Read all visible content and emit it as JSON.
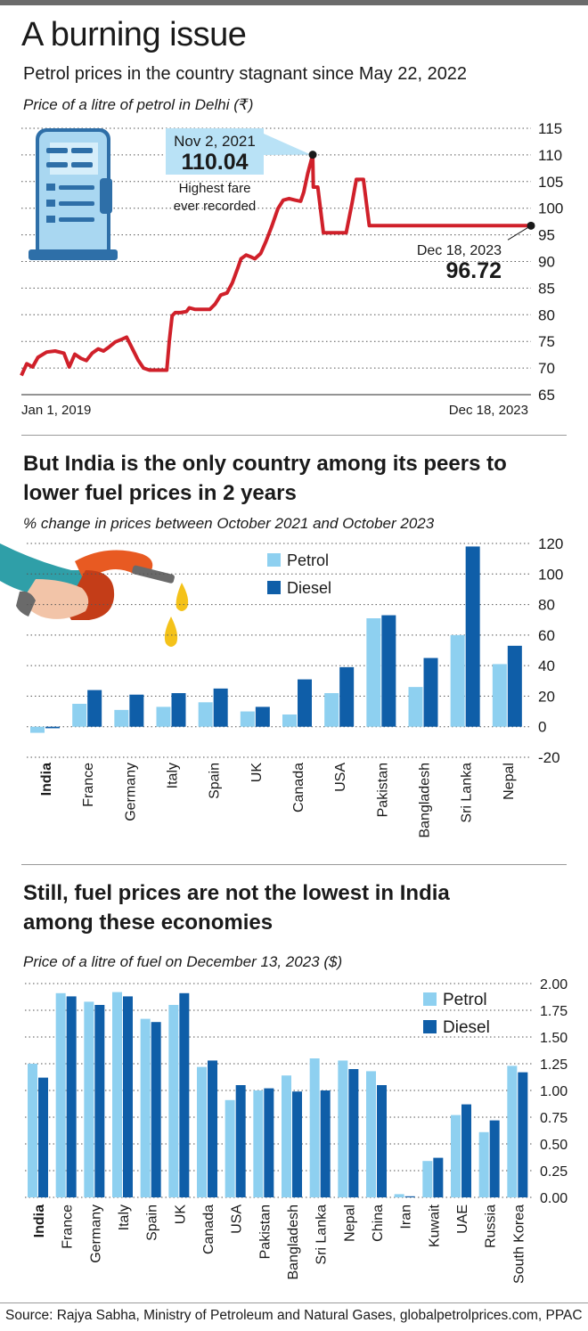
{
  "header": {
    "title": "A burning issue",
    "subtitle": "Petrol prices in the country stagnant since May 22, 2022"
  },
  "chart1": {
    "note": "Price of a litre of petrol in Delhi (₹)",
    "x_start_label": "Jan 1, 2019",
    "x_end_label": "Dec 18, 2023",
    "peak_date": "Nov 2, 2021",
    "peak_value": "110.04",
    "peak_caption_1": "Highest fare",
    "peak_caption_2": "ever recorded",
    "end_date": "Dec 18, 2023",
    "end_value": "96.72"
  },
  "chart2": {
    "title_line1": "But India is the only country among its peers to",
    "title_line2": "lower fuel prices in 2 years",
    "note": "% change in prices between October 2021 and October 2023"
  },
  "chart3": {
    "title_line1": "Still, fuel prices are not the lowest in India",
    "title_line2": "among these economies",
    "note": "Price of a litre of fuel on December 13, 2023 ($)"
  },
  "source": "Source: Rajya Sabha, Ministry of Petroleum and Natural Gases, globalpetrolprices.com, PPAC",
  "colors": {
    "line": "#d0202a",
    "petrol": "#8ed0f0",
    "diesel": "#0f5ea8",
    "grid": "#555555"
  },
  "chart_data": [
    {
      "type": "line",
      "title": "Price of a litre of petrol in Delhi (₹)",
      "ylim": [
        65,
        115
      ],
      "yticks": [
        65,
        70,
        75,
        80,
        85,
        90,
        95,
        100,
        105,
        110,
        115
      ],
      "x": [
        "2019-01-01",
        "2019-01-20",
        "2019-02-10",
        "2019-03-01",
        "2019-04-01",
        "2019-05-01",
        "2019-06-01",
        "2019-06-20",
        "2019-07-10",
        "2019-08-01",
        "2019-08-20",
        "2019-09-10",
        "2019-10-01",
        "2019-10-20",
        "2019-11-10",
        "2019-12-01",
        "2019-12-20",
        "2020-01-10",
        "2020-02-01",
        "2020-02-20",
        "2020-03-10",
        "2020-04-01",
        "2020-05-01",
        "2020-06-01",
        "2020-06-10",
        "2020-06-20",
        "2020-07-01",
        "2020-07-20",
        "2020-08-10",
        "2020-08-20",
        "2020-09-10",
        "2020-10-01",
        "2020-11-01",
        "2020-11-20",
        "2020-12-10",
        "2021-01-01",
        "2021-01-20",
        "2021-02-10",
        "2021-02-20",
        "2021-03-10",
        "2021-03-25",
        "2021-04-10",
        "2021-05-01",
        "2021-05-20",
        "2021-06-10",
        "2021-07-01",
        "2021-07-20",
        "2021-08-10",
        "2021-09-01",
        "2021-09-20",
        "2021-10-01",
        "2021-10-15",
        "2021-11-02",
        "2021-11-04",
        "2021-11-20",
        "2021-12-10",
        "2022-01-01",
        "2022-02-01",
        "2022-03-01",
        "2022-03-22",
        "2022-04-06",
        "2022-05-01",
        "2022-05-22",
        "2022-07-01",
        "2022-10-01",
        "2023-01-01",
        "2023-04-01",
        "2023-07-01",
        "2023-10-01",
        "2023-12-18"
      ],
      "series": [
        {
          "values": [
            68.6,
            70.8,
            70.2,
            72.0,
            73.0,
            73.2,
            72.8,
            70.2,
            72.6,
            71.8,
            71.4,
            72.8,
            73.6,
            73.2,
            74.0,
            74.9,
            75.3,
            75.8,
            73.5,
            71.5,
            70.0,
            69.6,
            69.6,
            69.6,
            75.0,
            79.8,
            80.4,
            80.4,
            80.6,
            81.3,
            81.0,
            81.0,
            81.0,
            82.0,
            83.7,
            84.1,
            86.0,
            89.0,
            90.5,
            91.2,
            90.9,
            90.5,
            91.5,
            93.8,
            96.7,
            99.9,
            101.5,
            101.8,
            101.5,
            101.3,
            103.0,
            106.5,
            110.04,
            103.97,
            103.97,
            95.4,
            95.4,
            95.4,
            95.4,
            101.0,
            105.4,
            105.4,
            96.72,
            96.72,
            96.72,
            96.72,
            96.72,
            96.72,
            96.72,
            96.72
          ]
        }
      ],
      "annotations": [
        {
          "x": "2021-11-02",
          "y": 110.04,
          "label": "Nov 2, 2021 110.04 Highest fare ever recorded"
        },
        {
          "x": "2023-12-18",
          "y": 96.72,
          "label": "Dec 18, 2023 96.72"
        }
      ]
    },
    {
      "type": "bar",
      "title": "% change in prices between October 2021 and October 2023",
      "categories": [
        "India",
        "France",
        "Germany",
        "Italy",
        "Spain",
        "UK",
        "Canada",
        "USA",
        "Pakistan",
        "Bangladesh",
        "Sri Lanka",
        "Nepal"
      ],
      "series": [
        {
          "name": "Petrol",
          "values": [
            -4,
            15,
            11,
            13,
            16,
            10,
            8,
            22,
            71,
            26,
            60,
            41
          ]
        },
        {
          "name": "Diesel",
          "values": [
            -1,
            24,
            21,
            22,
            25,
            13,
            31,
            39,
            73,
            45,
            118,
            53
          ]
        }
      ],
      "ylim": [
        -20,
        120
      ],
      "yticks": [
        -20,
        0,
        20,
        40,
        60,
        80,
        100,
        120
      ],
      "legend": "top-center"
    },
    {
      "type": "bar",
      "title": "Price of a litre of fuel on December 13, 2023 ($)",
      "categories": [
        "India",
        "France",
        "Germany",
        "Italy",
        "Spain",
        "UK",
        "Canada",
        "USA",
        "Pakistan",
        "Bangladesh",
        "Sri Lanka",
        "Nepal",
        "China",
        "Iran",
        "Kuwait",
        "UAE",
        "Russia",
        "South Korea"
      ],
      "series": [
        {
          "name": "Petrol",
          "values": [
            1.25,
            1.91,
            1.83,
            1.92,
            1.67,
            1.8,
            1.22,
            0.91,
            1.0,
            1.14,
            1.3,
            1.28,
            1.18,
            0.03,
            0.34,
            0.77,
            0.61,
            1.23
          ]
        },
        {
          "name": "Diesel",
          "values": [
            1.12,
            1.88,
            1.8,
            1.88,
            1.64,
            1.91,
            1.28,
            1.05,
            1.02,
            0.99,
            1.0,
            1.2,
            1.05,
            0.01,
            0.37,
            0.87,
            0.72,
            1.17
          ]
        }
      ],
      "ylim": [
        0,
        2
      ],
      "yticks": [
        "0.00",
        "0.25",
        "0.50",
        "0.75",
        "1.00",
        "1.25",
        "1.50",
        "1.75",
        "2.00"
      ],
      "legend": "top-right"
    }
  ]
}
